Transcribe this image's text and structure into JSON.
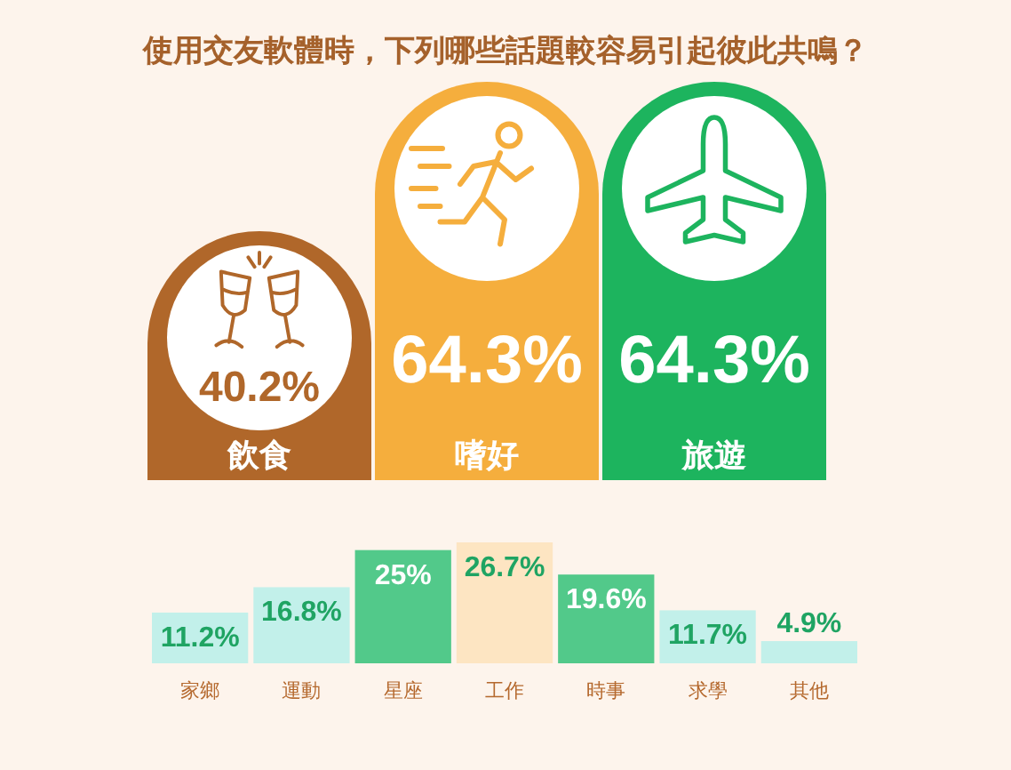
{
  "chart_data": [
    {
      "type": "bar",
      "title": "使用交友軟體時，下列哪些話題較容易引起彼此共鳴？",
      "categories": [
        "飲食",
        "嗜好",
        "旅遊"
      ],
      "values": [
        40.2,
        64.3,
        64.3
      ],
      "value_labels": [
        "40.2%",
        "64.3%",
        "64.3%"
      ],
      "colors": [
        "#b0672a",
        "#f5ae3d",
        "#1db45e"
      ]
    },
    {
      "type": "bar",
      "categories": [
        "家鄉",
        "運動",
        "星座",
        "工作",
        "時事",
        "求學",
        "其他"
      ],
      "values": [
        11.2,
        16.8,
        25,
        26.7,
        19.6,
        11.7,
        4.9
      ],
      "value_labels": [
        "11.2%",
        "16.8%",
        "25%",
        "26.7%",
        "19.6%",
        "11.7%",
        "4.9%"
      ],
      "colors": [
        "#c2f0ea",
        "#c2f0ea",
        "#52c98a",
        "#fde5c2",
        "#52c98a",
        "#c2f0ea",
        "#c2f0ea"
      ]
    }
  ]
}
